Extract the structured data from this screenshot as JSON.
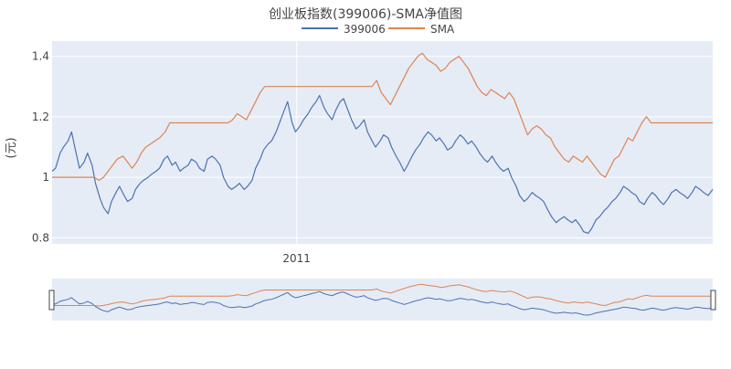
{
  "chart_data": {
    "type": "line",
    "title": "创业板指数(399006)-SMA净值图",
    "ylabel": "(元)",
    "xlabel": "",
    "ylim": [
      0.78,
      1.45
    ],
    "yticks": [
      0.8,
      1,
      1.2,
      1.4
    ],
    "ytick_labels": [
      "0.8",
      "1",
      "1.2",
      "1.4"
    ],
    "xrange": [
      "2010-06-01",
      "2011-12-31"
    ],
    "xticks": [
      "2011-01-01"
    ],
    "xtick_labels": [
      "2011"
    ],
    "grid": true,
    "legend": "top-center, horizontal",
    "range_slider": true,
    "series": [
      {
        "name": "399006",
        "color": "#4c72b0",
        "points": [
          [
            "2010-06-01",
            1.02
          ],
          [
            "2010-06-04",
            1.03
          ],
          [
            "2010-06-08",
            1.08
          ],
          [
            "2010-06-11",
            1.1
          ],
          [
            "2010-06-15",
            1.12
          ],
          [
            "2010-06-18",
            1.15
          ],
          [
            "2010-06-22",
            1.08
          ],
          [
            "2010-06-25",
            1.03
          ],
          [
            "2010-06-29",
            1.05
          ],
          [
            "2010-07-02",
            1.08
          ],
          [
            "2010-07-06",
            1.04
          ],
          [
            "2010-07-09",
            0.98
          ],
          [
            "2010-07-13",
            0.93
          ],
          [
            "2010-07-16",
            0.9
          ],
          [
            "2010-07-20",
            0.88
          ],
          [
            "2010-07-23",
            0.92
          ],
          [
            "2010-07-27",
            0.95
          ],
          [
            "2010-07-30",
            0.97
          ],
          [
            "2010-08-03",
            0.94
          ],
          [
            "2010-08-06",
            0.92
          ],
          [
            "2010-08-10",
            0.93
          ],
          [
            "2010-08-13",
            0.96
          ],
          [
            "2010-08-17",
            0.98
          ],
          [
            "2010-08-20",
            0.99
          ],
          [
            "2010-08-24",
            1.0
          ],
          [
            "2010-08-27",
            1.01
          ],
          [
            "2010-08-31",
            1.02
          ],
          [
            "2010-09-03",
            1.03
          ],
          [
            "2010-09-07",
            1.06
          ],
          [
            "2010-09-10",
            1.07
          ],
          [
            "2010-09-14",
            1.04
          ],
          [
            "2010-09-17",
            1.05
          ],
          [
            "2010-09-21",
            1.02
          ],
          [
            "2010-09-24",
            1.03
          ],
          [
            "2010-09-28",
            1.04
          ],
          [
            "2010-10-01",
            1.06
          ],
          [
            "2010-10-05",
            1.05
          ],
          [
            "2010-10-08",
            1.03
          ],
          [
            "2010-10-12",
            1.02
          ],
          [
            "2010-10-15",
            1.06
          ],
          [
            "2010-10-19",
            1.07
          ],
          [
            "2010-10-22",
            1.06
          ],
          [
            "2010-10-26",
            1.04
          ],
          [
            "2010-10-29",
            1.0
          ],
          [
            "2010-11-02",
            0.97
          ],
          [
            "2010-11-05",
            0.96
          ],
          [
            "2010-11-09",
            0.97
          ],
          [
            "2010-11-12",
            0.98
          ],
          [
            "2010-11-16",
            0.96
          ],
          [
            "2010-11-19",
            0.97
          ],
          [
            "2010-11-23",
            0.99
          ],
          [
            "2010-11-26",
            1.03
          ],
          [
            "2010-11-30",
            1.06
          ],
          [
            "2010-12-03",
            1.09
          ],
          [
            "2010-12-07",
            1.11
          ],
          [
            "2010-12-10",
            1.12
          ],
          [
            "2010-12-14",
            1.15
          ],
          [
            "2010-12-17",
            1.18
          ],
          [
            "2010-12-21",
            1.22
          ],
          [
            "2010-12-24",
            1.25
          ],
          [
            "2010-12-28",
            1.18
          ],
          [
            "2010-12-31",
            1.15
          ],
          [
            "2011-01-04",
            1.17
          ],
          [
            "2011-01-07",
            1.19
          ],
          [
            "2011-01-11",
            1.21
          ],
          [
            "2011-01-14",
            1.23
          ],
          [
            "2011-01-18",
            1.25
          ],
          [
            "2011-01-21",
            1.27
          ],
          [
            "2011-01-25",
            1.23
          ],
          [
            "2011-01-28",
            1.21
          ],
          [
            "2011-02-01",
            1.19
          ],
          [
            "2011-02-04",
            1.22
          ],
          [
            "2011-02-08",
            1.25
          ],
          [
            "2011-02-11",
            1.26
          ],
          [
            "2011-02-15",
            1.22
          ],
          [
            "2011-02-18",
            1.19
          ],
          [
            "2011-02-22",
            1.16
          ],
          [
            "2011-02-25",
            1.17
          ],
          [
            "2011-03-01",
            1.19
          ],
          [
            "2011-03-04",
            1.15
          ],
          [
            "2011-03-08",
            1.12
          ],
          [
            "2011-03-11",
            1.1
          ],
          [
            "2011-03-15",
            1.12
          ],
          [
            "2011-03-18",
            1.14
          ],
          [
            "2011-03-22",
            1.13
          ],
          [
            "2011-03-25",
            1.1
          ],
          [
            "2011-03-29",
            1.07
          ],
          [
            "2011-04-01",
            1.05
          ],
          [
            "2011-04-05",
            1.02
          ],
          [
            "2011-04-08",
            1.04
          ],
          [
            "2011-04-12",
            1.07
          ],
          [
            "2011-04-15",
            1.09
          ],
          [
            "2011-04-19",
            1.11
          ],
          [
            "2011-04-22",
            1.13
          ],
          [
            "2011-04-26",
            1.15
          ],
          [
            "2011-04-29",
            1.14
          ],
          [
            "2011-05-03",
            1.12
          ],
          [
            "2011-05-06",
            1.13
          ],
          [
            "2011-05-10",
            1.11
          ],
          [
            "2011-05-13",
            1.09
          ],
          [
            "2011-05-17",
            1.1
          ],
          [
            "2011-05-20",
            1.12
          ],
          [
            "2011-05-24",
            1.14
          ],
          [
            "2011-05-27",
            1.13
          ],
          [
            "2011-05-31",
            1.11
          ],
          [
            "2011-06-03",
            1.12
          ],
          [
            "2011-06-07",
            1.1
          ],
          [
            "2011-06-10",
            1.08
          ],
          [
            "2011-06-14",
            1.06
          ],
          [
            "2011-06-17",
            1.05
          ],
          [
            "2011-06-21",
            1.07
          ],
          [
            "2011-06-24",
            1.05
          ],
          [
            "2011-06-28",
            1.03
          ],
          [
            "2011-07-01",
            1.02
          ],
          [
            "2011-07-05",
            1.03
          ],
          [
            "2011-07-08",
            1.0
          ],
          [
            "2011-07-12",
            0.97
          ],
          [
            "2011-07-15",
            0.94
          ],
          [
            "2011-07-19",
            0.92
          ],
          [
            "2011-07-22",
            0.93
          ],
          [
            "2011-07-26",
            0.95
          ],
          [
            "2011-07-29",
            0.94
          ],
          [
            "2011-08-02",
            0.93
          ],
          [
            "2011-08-05",
            0.92
          ],
          [
            "2011-08-09",
            0.89
          ],
          [
            "2011-08-12",
            0.87
          ],
          [
            "2011-08-16",
            0.85
          ],
          [
            "2011-08-19",
            0.86
          ],
          [
            "2011-08-23",
            0.87
          ],
          [
            "2011-08-26",
            0.86
          ],
          [
            "2011-08-30",
            0.85
          ],
          [
            "2011-09-02",
            0.86
          ],
          [
            "2011-09-06",
            0.84
          ],
          [
            "2011-09-09",
            0.82
          ],
          [
            "2011-09-13",
            0.815
          ],
          [
            "2011-09-16",
            0.83
          ],
          [
            "2011-09-20",
            0.86
          ],
          [
            "2011-09-23",
            0.87
          ],
          [
            "2011-09-27",
            0.89
          ],
          [
            "2011-09-30",
            0.9
          ],
          [
            "2011-10-04",
            0.92
          ],
          [
            "2011-10-07",
            0.93
          ],
          [
            "2011-10-11",
            0.95
          ],
          [
            "2011-10-14",
            0.97
          ],
          [
            "2011-10-18",
            0.96
          ],
          [
            "2011-10-21",
            0.95
          ],
          [
            "2011-10-25",
            0.94
          ],
          [
            "2011-10-28",
            0.92
          ],
          [
            "2011-11-01",
            0.91
          ],
          [
            "2011-11-04",
            0.93
          ],
          [
            "2011-11-08",
            0.95
          ],
          [
            "2011-11-11",
            0.94
          ],
          [
            "2011-11-15",
            0.92
          ],
          [
            "2011-11-18",
            0.91
          ],
          [
            "2011-11-22",
            0.93
          ],
          [
            "2011-11-25",
            0.95
          ],
          [
            "2011-11-29",
            0.96
          ],
          [
            "2011-12-02",
            0.95
          ],
          [
            "2011-12-06",
            0.94
          ],
          [
            "2011-12-09",
            0.93
          ],
          [
            "2011-12-13",
            0.95
          ],
          [
            "2011-12-16",
            0.97
          ],
          [
            "2011-12-20",
            0.96
          ],
          [
            "2011-12-23",
            0.95
          ],
          [
            "2011-12-27",
            0.94
          ],
          [
            "2011-12-31",
            0.96
          ]
        ]
      },
      {
        "name": "SMA",
        "color": "#dd8452",
        "points": [
          [
            "2010-06-01",
            1.0
          ],
          [
            "2010-06-12",
            1.0
          ],
          [
            "2010-06-25",
            1.0
          ],
          [
            "2010-07-08",
            1.0
          ],
          [
            "2010-07-12",
            0.99
          ],
          [
            "2010-07-16",
            1.0
          ],
          [
            "2010-07-20",
            1.02
          ],
          [
            "2010-07-24",
            1.04
          ],
          [
            "2010-07-28",
            1.06
          ],
          [
            "2010-08-02",
            1.07
          ],
          [
            "2010-08-06",
            1.05
          ],
          [
            "2010-08-10",
            1.03
          ],
          [
            "2010-08-14",
            1.05
          ],
          [
            "2010-08-18",
            1.08
          ],
          [
            "2010-08-22",
            1.1
          ],
          [
            "2010-08-26",
            1.11
          ],
          [
            "2010-08-30",
            1.12
          ],
          [
            "2010-09-03",
            1.13
          ],
          [
            "2010-09-08",
            1.15
          ],
          [
            "2010-09-12",
            1.18
          ],
          [
            "2010-09-20",
            1.18
          ],
          [
            "2010-10-05",
            1.18
          ],
          [
            "2010-10-20",
            1.18
          ],
          [
            "2010-11-02",
            1.18
          ],
          [
            "2010-11-06",
            1.19
          ],
          [
            "2010-11-10",
            1.21
          ],
          [
            "2010-11-14",
            1.2
          ],
          [
            "2010-11-18",
            1.19
          ],
          [
            "2010-11-22",
            1.22
          ],
          [
            "2010-11-26",
            1.25
          ],
          [
            "2010-11-30",
            1.28
          ],
          [
            "2010-12-04",
            1.3
          ],
          [
            "2010-12-20",
            1.3
          ],
          [
            "2011-01-10",
            1.3
          ],
          [
            "2011-02-01",
            1.3
          ],
          [
            "2011-02-20",
            1.3
          ],
          [
            "2011-03-08",
            1.3
          ],
          [
            "2011-03-12",
            1.32
          ],
          [
            "2011-03-16",
            1.28
          ],
          [
            "2011-03-20",
            1.26
          ],
          [
            "2011-03-24",
            1.24
          ],
          [
            "2011-03-28",
            1.27
          ],
          [
            "2011-04-01",
            1.3
          ],
          [
            "2011-04-05",
            1.33
          ],
          [
            "2011-04-09",
            1.36
          ],
          [
            "2011-04-13",
            1.38
          ],
          [
            "2011-04-17",
            1.4
          ],
          [
            "2011-04-21",
            1.41
          ],
          [
            "2011-04-25",
            1.39
          ],
          [
            "2011-04-29",
            1.38
          ],
          [
            "2011-05-03",
            1.37
          ],
          [
            "2011-05-07",
            1.35
          ],
          [
            "2011-05-11",
            1.36
          ],
          [
            "2011-05-15",
            1.38
          ],
          [
            "2011-05-19",
            1.39
          ],
          [
            "2011-05-23",
            1.4
          ],
          [
            "2011-05-27",
            1.38
          ],
          [
            "2011-05-31",
            1.36
          ],
          [
            "2011-06-04",
            1.33
          ],
          [
            "2011-06-08",
            1.3
          ],
          [
            "2011-06-12",
            1.28
          ],
          [
            "2011-06-16",
            1.27
          ],
          [
            "2011-06-20",
            1.29
          ],
          [
            "2011-06-24",
            1.28
          ],
          [
            "2011-06-28",
            1.27
          ],
          [
            "2011-07-02",
            1.26
          ],
          [
            "2011-07-06",
            1.28
          ],
          [
            "2011-07-10",
            1.26
          ],
          [
            "2011-07-14",
            1.22
          ],
          [
            "2011-07-18",
            1.18
          ],
          [
            "2011-07-22",
            1.14
          ],
          [
            "2011-07-26",
            1.16
          ],
          [
            "2011-07-30",
            1.17
          ],
          [
            "2011-08-03",
            1.16
          ],
          [
            "2011-08-07",
            1.14
          ],
          [
            "2011-08-11",
            1.13
          ],
          [
            "2011-08-15",
            1.1
          ],
          [
            "2011-08-19",
            1.08
          ],
          [
            "2011-08-23",
            1.06
          ],
          [
            "2011-08-27",
            1.05
          ],
          [
            "2011-08-31",
            1.07
          ],
          [
            "2011-09-04",
            1.06
          ],
          [
            "2011-09-08",
            1.05
          ],
          [
            "2011-09-12",
            1.07
          ],
          [
            "2011-09-16",
            1.05
          ],
          [
            "2011-09-20",
            1.03
          ],
          [
            "2011-09-24",
            1.01
          ],
          [
            "2011-09-28",
            1.0
          ],
          [
            "2011-10-02",
            1.03
          ],
          [
            "2011-10-06",
            1.06
          ],
          [
            "2011-10-10",
            1.07
          ],
          [
            "2011-10-14",
            1.1
          ],
          [
            "2011-10-18",
            1.13
          ],
          [
            "2011-10-22",
            1.12
          ],
          [
            "2011-10-26",
            1.15
          ],
          [
            "2011-10-30",
            1.18
          ],
          [
            "2011-11-03",
            1.2
          ],
          [
            "2011-11-07",
            1.18
          ],
          [
            "2011-11-15",
            1.18
          ],
          [
            "2011-12-01",
            1.18
          ],
          [
            "2011-12-15",
            1.18
          ],
          [
            "2011-12-31",
            1.18
          ]
        ]
      }
    ]
  }
}
